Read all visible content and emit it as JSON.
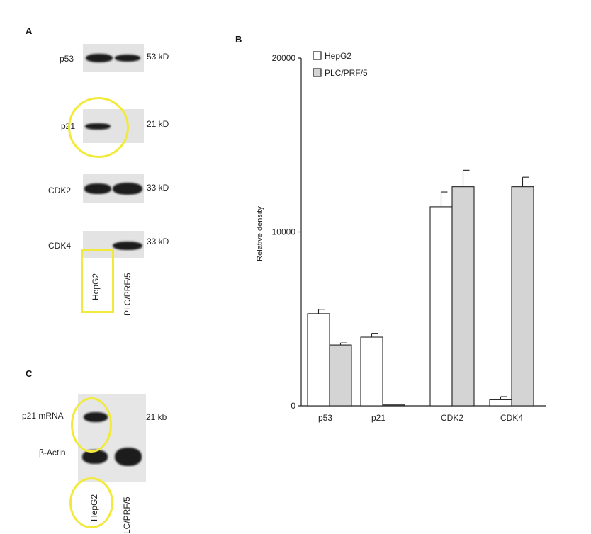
{
  "panel_a": {
    "letter": "A",
    "blots": [
      {
        "protein": "p53",
        "size": "53 kD"
      },
      {
        "protein": "p21",
        "size": "21 kD"
      },
      {
        "protein": "CDK2",
        "size": "33 kD"
      },
      {
        "protein": "CDK4",
        "size": "33 kD"
      }
    ],
    "lanes": [
      "HepG2",
      "PLC/PRF/5"
    ]
  },
  "panel_b": {
    "letter": "B"
  },
  "panel_c": {
    "letter": "C",
    "rows": [
      {
        "label": "p21 mRNA",
        "size": "21 kb"
      },
      {
        "label": "β-Actin"
      }
    ],
    "lanes": [
      "HepG2",
      "LC/PRF/5"
    ]
  },
  "chart_data": {
    "type": "bar",
    "ylabel": "Relative density",
    "ylim": [
      0,
      20000
    ],
    "yticks": [
      "0",
      "10000",
      "20000"
    ],
    "categories": [
      "p53",
      "p21",
      "CDK2",
      "CDK4"
    ],
    "series": [
      {
        "name": "HepG2",
        "color": "#ffffff",
        "values": [
          5300,
          3950,
          11450,
          350
        ],
        "errors": [
          250,
          220,
          850,
          180
        ]
      },
      {
        "name": "PLC/PRF/5",
        "color": "#d4d4d4",
        "values": [
          3500,
          50,
          12600,
          12600
        ],
        "errors": [
          120,
          0,
          950,
          550
        ]
      }
    ],
    "legend_position": "top-left",
    "grid": false
  },
  "highlight_color": "#f2ea3b"
}
